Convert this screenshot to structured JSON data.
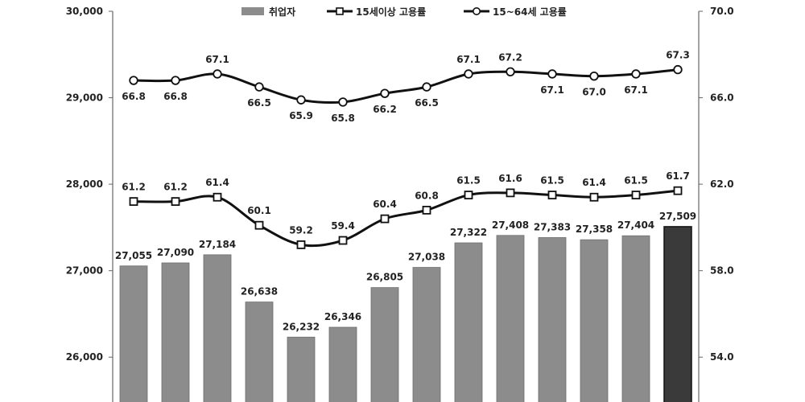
{
  "chart_data": {
    "type": "bar",
    "legend": {
      "position": "top",
      "entries": [
        {
          "label": "취업자",
          "kind": "bar",
          "color": "#8c8c8c"
        },
        {
          "label": "15세이상 고용률",
          "kind": "line",
          "marker": "square"
        },
        {
          "label": "15~64세 고용률",
          "kind": "line",
          "marker": "circle"
        }
      ]
    },
    "y_left": {
      "ylim": [
        25500,
        30000
      ],
      "ticks": [
        26000,
        27000,
        28000,
        29000,
        30000
      ],
      "tick_labels": [
        "26,000",
        "27,000",
        "28,000",
        "29,000",
        "30,000"
      ]
    },
    "y_right": {
      "ylim": [
        52.0,
        70.0
      ],
      "ticks": [
        54.0,
        58.0,
        62.0,
        66.0,
        70.0
      ],
      "tick_labels": [
        "54.0",
        "58.0",
        "62.0",
        "66.0",
        "70.0"
      ]
    },
    "series": [
      {
        "name": "취업자",
        "type": "bar",
        "axis": "left",
        "values": [
          27055,
          27090,
          27184,
          26638,
          26232,
          26346,
          26805,
          27038,
          27322,
          27408,
          27383,
          27358,
          27404,
          27509
        ],
        "labels": [
          "27,055",
          "27,090",
          "27,184",
          "26,638",
          "26,232",
          "26,346",
          "26,805",
          "27,038",
          "27,322",
          "27,408",
          "27,383",
          "27,358",
          "27,404",
          "27,509"
        ],
        "color": "#8c8c8c",
        "highlight_color": "#3a3a3a"
      },
      {
        "name": "15세이상 고용률",
        "type": "line",
        "axis": "right",
        "marker": "square",
        "values": [
          61.2,
          61.2,
          61.4,
          60.1,
          59.2,
          59.4,
          60.4,
          60.8,
          61.5,
          61.6,
          61.5,
          61.4,
          61.5,
          61.7
        ],
        "labels": [
          "61.2",
          "61.2",
          "61.4",
          "60.1",
          "59.2",
          "59.4",
          "60.4",
          "60.8",
          "61.5",
          "61.6",
          "61.5",
          "61.4",
          "61.5",
          "61.7"
        ]
      },
      {
        "name": "15~64세 고용률",
        "type": "line",
        "axis": "right",
        "marker": "circle",
        "values": [
          66.8,
          66.8,
          67.1,
          66.5,
          65.9,
          65.8,
          66.2,
          66.5,
          67.1,
          67.2,
          67.1,
          67.0,
          67.1,
          67.3
        ],
        "labels": [
          "66.8",
          "66.8",
          "67.1",
          "66.5",
          "65.9",
          "65.8",
          "66.2",
          "66.5",
          "67.1",
          "67.2",
          "67.1",
          "67.0",
          "67.1",
          "67.3"
        ]
      }
    ],
    "grid": false
  }
}
